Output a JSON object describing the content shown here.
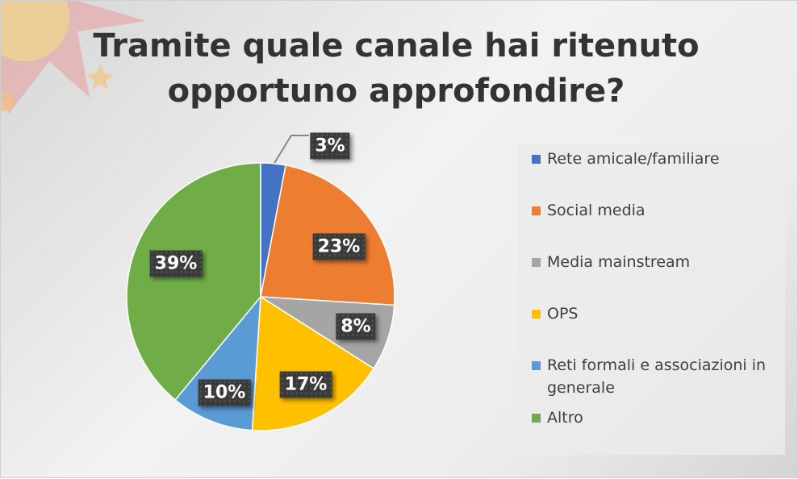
{
  "chart_data": {
    "type": "pie",
    "title": "Tramite quale canale hai ritenuto opportuno approfondire?",
    "categories": [
      "Rete amicale/familiare",
      "Social media",
      "Media mainstream",
      "OPS",
      "Reti formali e associazioni in generale",
      "Altro"
    ],
    "values": [
      3,
      23,
      8,
      17,
      10,
      39
    ],
    "labels": [
      "3%",
      "23%",
      "8%",
      "17%",
      "10%",
      "39%"
    ],
    "colors": [
      "#4472c4",
      "#ed7d31",
      "#a5a5a5",
      "#ffc000",
      "#5b9bd5",
      "#70ad47"
    ],
    "legend_position": "right"
  }
}
